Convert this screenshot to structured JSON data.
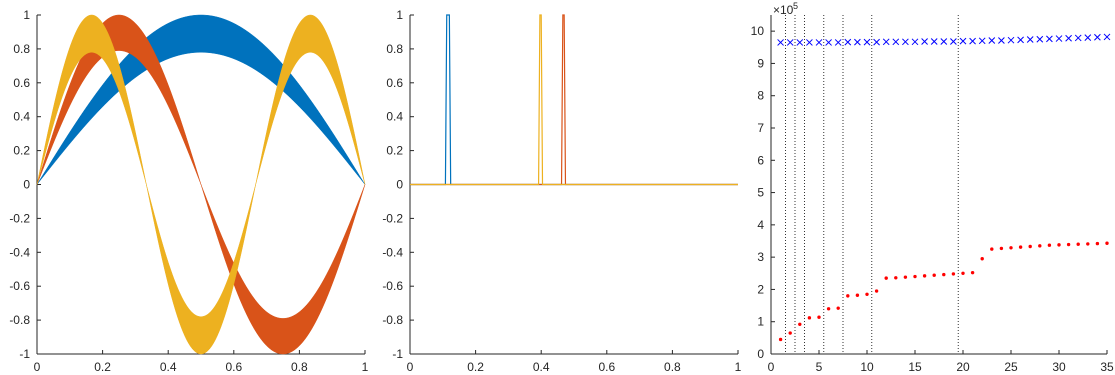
{
  "chart_data": [
    {
      "type": "area",
      "title": "",
      "xlabel": "",
      "ylabel": "",
      "xlim": [
        0,
        1
      ],
      "ylim": [
        -1,
        1
      ],
      "xticks": [
        "0",
        "0.2",
        "0.4",
        "0.6",
        "0.8",
        "1"
      ],
      "yticks": [
        "-1",
        "-0.8",
        "-0.6",
        "-0.4",
        "-0.2",
        "0",
        "0.2",
        "0.4",
        "0.6",
        "0.8",
        "1"
      ],
      "grid": false,
      "series": [
        {
          "function": "sin(pi*x)",
          "band_lower_scale": 0.78,
          "band_upper_scale": 1.0,
          "color": "#0072BD"
        },
        {
          "function": "sin(2*pi*x)",
          "band_lower_scale": 0.79,
          "band_upper_scale": 1.0,
          "color": "#D95319"
        },
        {
          "function": "sin(3*pi*x)",
          "band_lower_scale": 0.78,
          "band_upper_scale": 1.0,
          "color": "#EDB120"
        }
      ]
    },
    {
      "type": "line",
      "title": "",
      "xlabel": "",
      "ylabel": "",
      "xlim": [
        0,
        1
      ],
      "ylim": [
        -1,
        1
      ],
      "xticks": [
        "0",
        "0.2",
        "0.4",
        "0.6",
        "0.8",
        "1"
      ],
      "yticks": [
        "-1",
        "-0.8",
        "-0.6",
        "-0.4",
        "-0.2",
        "0",
        "0.2",
        "0.4",
        "0.6",
        "0.8",
        "1"
      ],
      "grid": false,
      "series": [
        {
          "x": [
            0.0,
            0.108,
            0.112,
            0.116,
            0.12,
            0.124,
            1.0
          ],
          "y": [
            0,
            0,
            1,
            1,
            1,
            0,
            0
          ],
          "color": "#0072BD"
        },
        {
          "x": [
            0.0,
            0.462,
            0.466,
            0.468,
            0.47,
            0.474,
            1.0
          ],
          "y": [
            0,
            0,
            1,
            1,
            1,
            0,
            0
          ],
          "color": "#D95319"
        },
        {
          "x": [
            0.0,
            0.392,
            0.396,
            0.398,
            0.4,
            0.404,
            1.0
          ],
          "y": [
            0,
            0,
            1,
            1,
            1,
            0,
            0
          ],
          "color": "#EDB120"
        }
      ]
    },
    {
      "type": "scatter",
      "title": "",
      "xlabel": "",
      "ylabel": "",
      "xlim": [
        0,
        35
      ],
      "ylim": [
        0,
        10.5
      ],
      "exponent_label": "×10",
      "exponent_power": "5",
      "xticks": [
        "0",
        "5",
        "10",
        "15",
        "20",
        "25",
        "30",
        "35"
      ],
      "yticks": [
        "0",
        "1",
        "2",
        "3",
        "4",
        "5",
        "6",
        "7",
        "8",
        "9",
        "10"
      ],
      "grid": false,
      "vlines": [
        1.5,
        2.5,
        3.5,
        5.5,
        7.5,
        10.5,
        19.5
      ],
      "series": [
        {
          "marker": "x",
          "color": "#0000FF",
          "x": [
            1,
            2,
            3,
            4,
            5,
            6,
            7,
            8,
            9,
            10,
            11,
            12,
            13,
            14,
            15,
            16,
            17,
            18,
            19,
            20,
            21,
            22,
            23,
            24,
            25,
            26,
            27,
            28,
            29,
            30,
            31,
            32,
            33,
            34,
            35
          ],
          "y": [
            9.65,
            9.65,
            9.65,
            9.65,
            9.65,
            9.65,
            9.65,
            9.66,
            9.66,
            9.66,
            9.66,
            9.67,
            9.67,
            9.67,
            9.67,
            9.68,
            9.68,
            9.68,
            9.68,
            9.69,
            9.69,
            9.7,
            9.71,
            9.71,
            9.72,
            9.73,
            9.74,
            9.75,
            9.76,
            9.77,
            9.78,
            9.79,
            9.8,
            9.81,
            9.82
          ]
        },
        {
          "marker": ".",
          "color": "#FF0000",
          "x": [
            1,
            2,
            3,
            4,
            5,
            6,
            7,
            8,
            9,
            10,
            11,
            12,
            13,
            14,
            15,
            16,
            17,
            18,
            19,
            20,
            21,
            22,
            23,
            24,
            25,
            26,
            27,
            28,
            29,
            30,
            31,
            32,
            33,
            34,
            35
          ],
          "y": [
            0.45,
            0.65,
            0.92,
            1.12,
            1.14,
            1.4,
            1.42,
            1.8,
            1.82,
            1.85,
            1.95,
            2.35,
            2.36,
            2.38,
            2.4,
            2.42,
            2.44,
            2.46,
            2.48,
            2.5,
            2.52,
            2.95,
            3.25,
            3.27,
            3.29,
            3.31,
            3.33,
            3.35,
            3.37,
            3.38,
            3.39,
            3.4,
            3.41,
            3.42,
            3.43
          ]
        }
      ]
    }
  ]
}
